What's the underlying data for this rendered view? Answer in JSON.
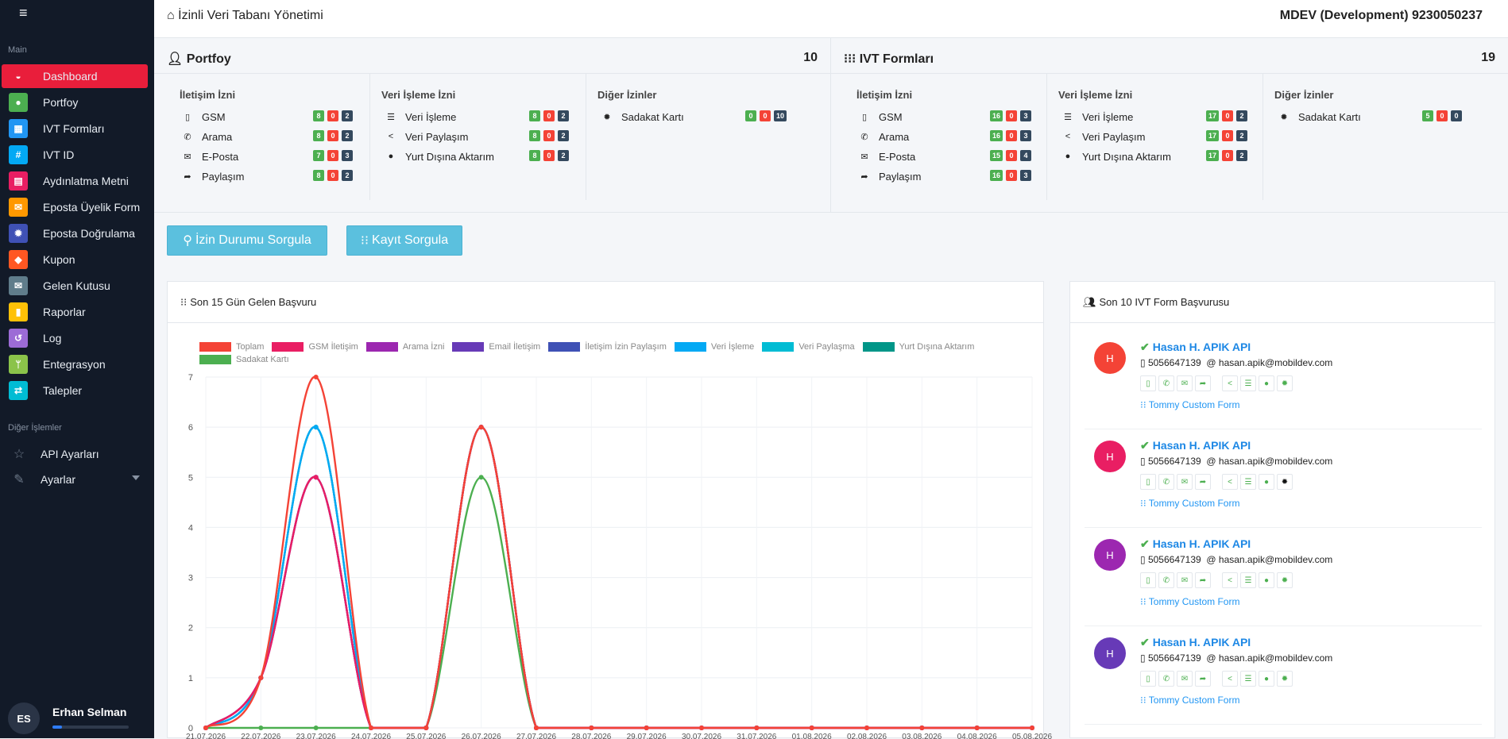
{
  "sidebar": {
    "section_main": "Main",
    "section_other": "Diğer İşlemler",
    "items": [
      {
        "label": "Dashboard",
        "icon": "dashboard-icon",
        "color": "#e91e3b"
      },
      {
        "label": "Portfoy",
        "icon": "user-icon",
        "color": "#4caf50"
      },
      {
        "label": "IVT Formları",
        "icon": "grid-icon",
        "color": "#2196f3"
      },
      {
        "label": "IVT ID",
        "icon": "hash-icon",
        "color": "#03a9f4"
      },
      {
        "label": "Aydınlatma Metni",
        "icon": "file-icon",
        "color": "#e91e63"
      },
      {
        "label": "Eposta Üyelik Form",
        "icon": "envelope-open-icon",
        "color": "#ff9800"
      },
      {
        "label": "Eposta Doğrulama",
        "icon": "badge-icon",
        "color": "#3f51b5"
      },
      {
        "label": "Kupon",
        "icon": "ticket-icon",
        "color": "#ff5722"
      },
      {
        "label": "Gelen Kutusu",
        "icon": "envelope-icon",
        "color": "#607d8b"
      },
      {
        "label": "Raporlar",
        "icon": "bar-chart-icon",
        "color": "#ffc107"
      },
      {
        "label": "Log",
        "icon": "history-icon",
        "color": "#9c6bd6"
      },
      {
        "label": "Entegrasyon",
        "icon": "code-branch-icon",
        "color": "#8bc34a"
      },
      {
        "label": "Talepler",
        "icon": "exchange-icon",
        "color": "#00bcd4"
      }
    ],
    "other_items": [
      {
        "label": "API Ayarları",
        "icon": "star-icon"
      },
      {
        "label": "Ayarlar",
        "icon": "wrench-icon"
      }
    ],
    "user": {
      "initials": "ES",
      "name": "Erhan Selman",
      "progress": 0.12
    }
  },
  "topbar": {
    "title": "İzinli Veri Tabanı Yönetimi",
    "account": "MDEV (Development) 9230050237"
  },
  "portfoy": {
    "title": "Portfoy",
    "count": "10",
    "columns": [
      {
        "title": "İletişim İzni",
        "rows": [
          {
            "label": "GSM",
            "icon": "mobile-icon",
            "g": "8",
            "r": "0",
            "d": "2"
          },
          {
            "label": "Arama",
            "icon": "phone-icon",
            "g": "8",
            "r": "0",
            "d": "2"
          },
          {
            "label": "E-Posta",
            "icon": "envelope-icon",
            "g": "7",
            "r": "0",
            "d": "3"
          },
          {
            "label": "Paylaşım",
            "icon": "share-icon",
            "g": "8",
            "r": "0",
            "d": "2"
          }
        ]
      },
      {
        "title": "Veri İşleme İzni",
        "rows": [
          {
            "label": "Veri İşleme",
            "icon": "list-icon",
            "g": "8",
            "r": "0",
            "d": "2"
          },
          {
            "label": "Veri Paylaşım",
            "icon": "share-alt-icon",
            "g": "8",
            "r": "0",
            "d": "2"
          },
          {
            "label": "Yurt Dışına Aktarım",
            "icon": "globe-icon",
            "g": "8",
            "r": "0",
            "d": "2"
          }
        ]
      },
      {
        "title": "Diğer İzinler",
        "rows": [
          {
            "label": "Sadakat Kartı",
            "icon": "badge-icon",
            "g": "0",
            "r": "0",
            "d": "10"
          }
        ]
      }
    ]
  },
  "ivt": {
    "title": "IVT Formları",
    "count": "19",
    "columns": [
      {
        "title": "İletişim İzni",
        "rows": [
          {
            "label": "GSM",
            "icon": "mobile-icon",
            "g": "16",
            "r": "0",
            "d": "3"
          },
          {
            "label": "Arama",
            "icon": "phone-icon",
            "g": "16",
            "r": "0",
            "d": "3"
          },
          {
            "label": "E-Posta",
            "icon": "envelope-icon",
            "g": "15",
            "r": "0",
            "d": "4"
          },
          {
            "label": "Paylaşım",
            "icon": "share-icon",
            "g": "16",
            "r": "0",
            "d": "3"
          }
        ]
      },
      {
        "title": "Veri İşleme İzni",
        "rows": [
          {
            "label": "Veri İşleme",
            "icon": "list-icon",
            "g": "17",
            "r": "0",
            "d": "2"
          },
          {
            "label": "Veri Paylaşım",
            "icon": "share-alt-icon",
            "g": "17",
            "r": "0",
            "d": "2"
          },
          {
            "label": "Yurt Dışına Aktarım",
            "icon": "globe-icon",
            "g": "17",
            "r": "0",
            "d": "2"
          }
        ]
      },
      {
        "title": "Diğer İzinler",
        "rows": [
          {
            "label": "Sadakat Kartı",
            "icon": "badge-icon",
            "g": "5",
            "r": "0",
            "d": "0"
          }
        ]
      }
    ]
  },
  "buttons": {
    "izin": "İzin Durumu Sorgula",
    "kayit": "Kayıt Sorgula"
  },
  "chart_card": {
    "title": "Son 15 Gün Gelen Başvuru"
  },
  "recent": {
    "title": "Son 10 IVT Form Başvurusu",
    "items": [
      {
        "initial": "H",
        "color": "#f44336",
        "name": "Hasan H. APIK API",
        "phone": "5056647139",
        "email": "hasan.apik@mobildev.com",
        "form": "Tommy Custom Form",
        "last_icon_black": false
      },
      {
        "initial": "H",
        "color": "#e91e63",
        "name": "Hasan H. APIK API",
        "phone": "5056647139",
        "email": "hasan.apik@mobildev.com",
        "form": "Tommy Custom Form",
        "last_icon_black": true
      },
      {
        "initial": "H",
        "color": "#9c27b0",
        "name": "Hasan H. APIK API",
        "phone": "5056647139",
        "email": "hasan.apik@mobildev.com",
        "form": "Tommy Custom Form",
        "last_icon_black": false
      },
      {
        "initial": "H",
        "color": "#673ab7",
        "name": "Hasan H. APIK API",
        "phone": "5056647139",
        "email": "hasan.apik@mobildev.com",
        "form": "Tommy Custom Form",
        "last_icon_black": false
      }
    ]
  },
  "chart_data": {
    "type": "line",
    "x": [
      "21.07.2026",
      "22.07.2026",
      "23.07.2026",
      "24.07.2026",
      "25.07.2026",
      "26.07.2026",
      "27.07.2026",
      "28.07.2026",
      "29.07.2026",
      "30.07.2026",
      "31.07.2026",
      "01.08.2026",
      "02.08.2026",
      "03.08.2026",
      "04.08.2026",
      "05.08.2026"
    ],
    "ylim": [
      0,
      7
    ],
    "yticks": [
      0,
      1,
      2,
      3,
      4,
      5,
      6,
      7
    ],
    "grid": true,
    "legend_position": "top",
    "series": [
      {
        "name": "Toplam",
        "color": "#f44336",
        "values": [
          0,
          1,
          7,
          0,
          0,
          6,
          0,
          0,
          0,
          0,
          0,
          0,
          0,
          0,
          0,
          0
        ]
      },
      {
        "name": "GSM İletişim",
        "color": "#e91e63",
        "values": [
          0,
          1,
          5,
          0,
          0,
          6,
          0,
          0,
          0,
          0,
          0,
          0,
          0,
          0,
          0,
          0
        ]
      },
      {
        "name": "Arama İzni",
        "color": "#9c27b0",
        "values": [
          0,
          1,
          5,
          0,
          0,
          6,
          0,
          0,
          0,
          0,
          0,
          0,
          0,
          0,
          0,
          0
        ]
      },
      {
        "name": "Email İletişim",
        "color": "#673ab7",
        "values": [
          0,
          1,
          5,
          0,
          0,
          6,
          0,
          0,
          0,
          0,
          0,
          0,
          0,
          0,
          0,
          0
        ]
      },
      {
        "name": "İletişim İzin Paylaşım",
        "color": "#3f51b5",
        "values": [
          0,
          1,
          5,
          0,
          0,
          6,
          0,
          0,
          0,
          0,
          0,
          0,
          0,
          0,
          0,
          0
        ]
      },
      {
        "name": "Veri İşleme",
        "color": "#03a9f4",
        "values": [
          0,
          1,
          6,
          0,
          0,
          6,
          0,
          0,
          0,
          0,
          0,
          0,
          0,
          0,
          0,
          0
        ]
      },
      {
        "name": "Veri Paylaşma",
        "color": "#00bcd4",
        "values": [
          0,
          1,
          6,
          0,
          0,
          6,
          0,
          0,
          0,
          0,
          0,
          0,
          0,
          0,
          0,
          0
        ]
      },
      {
        "name": "Yurt Dışına Aktarım",
        "color": "#009688",
        "values": [
          0,
          1,
          6,
          0,
          0,
          6,
          0,
          0,
          0,
          0,
          0,
          0,
          0,
          0,
          0,
          0
        ]
      },
      {
        "name": "Sadakat Kartı",
        "color": "#4caf50",
        "values": [
          0,
          0,
          0,
          0,
          0,
          5,
          0,
          0,
          0,
          0,
          0,
          0,
          0,
          0,
          0,
          0
        ]
      }
    ]
  }
}
